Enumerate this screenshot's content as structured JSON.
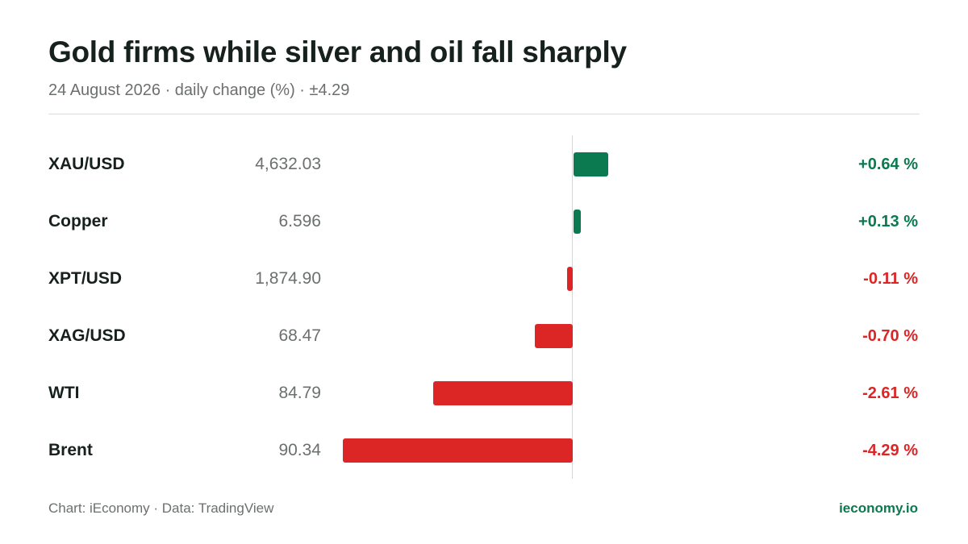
{
  "header": {
    "title": "Gold firms while silver and oil fall sharply",
    "subtitle": "24 August 2026 · daily change (%) · ±4.29"
  },
  "footer": {
    "source": "Chart: iEconomy · Data: TradingView",
    "brand": "ieconomy.io"
  },
  "colors": {
    "positive": "#0b7a50",
    "negative": "#dc2626"
  },
  "chart_data": {
    "type": "bar",
    "orientation": "horizontal",
    "scale_max": 4.29,
    "categories": [
      "XAU/USD",
      "Copper",
      "XPT/USD",
      "XAG/USD",
      "WTI",
      "Brent"
    ],
    "prices": [
      "4,632.03",
      "6.596",
      "1,874.90",
      "68.47",
      "84.79",
      "90.34"
    ],
    "values": [
      0.64,
      0.13,
      -0.11,
      -0.7,
      -2.61,
      -4.29
    ],
    "labels": [
      "+0.64 %",
      "+0.13 %",
      "-0.11 %",
      "-0.70 %",
      "-2.61 %",
      "-4.29 %"
    ]
  }
}
